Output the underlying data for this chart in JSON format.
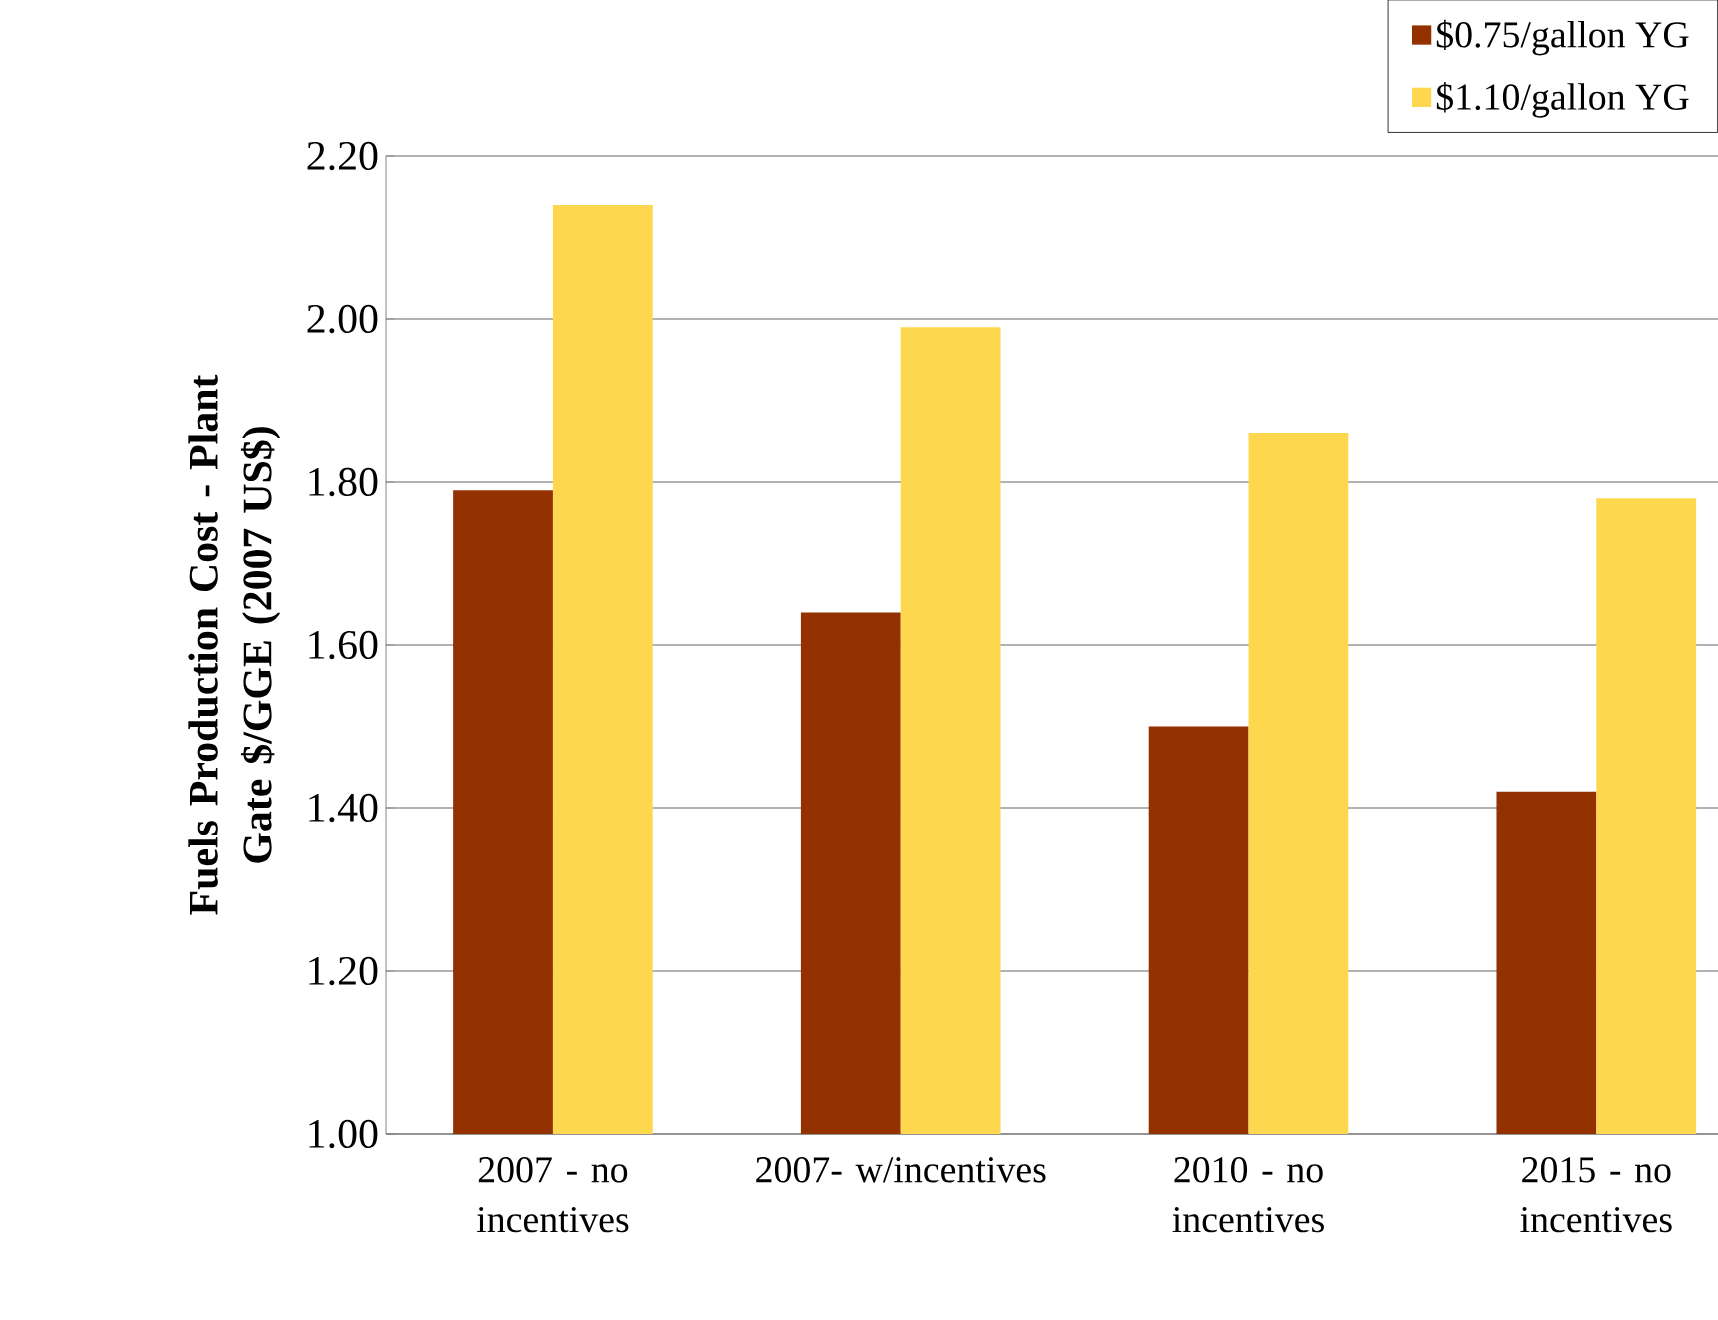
{
  "chart_data": {
    "type": "bar",
    "ylabel": "Fuels Production Cost - Plant Gate $/GGE (2007 US$)",
    "categories": [
      "2007 - no incentives",
      "2007- w/incentives",
      "2010 - no incentives",
      "2015 - no incentives"
    ],
    "series": [
      {
        "name": "$0.75/gallon YG",
        "color": "#943100",
        "values": [
          1.79,
          1.64,
          1.5,
          1.42
        ]
      },
      {
        "name": "$1.10/gallon YG",
        "color": "#fdd84f",
        "values": [
          2.14,
          1.99,
          1.86,
          1.78
        ]
      }
    ],
    "ylim": [
      1.0,
      2.2
    ],
    "yticks": [
      {
        "value": 1.0,
        "label": "1.00"
      },
      {
        "value": 1.2,
        "label": "1.20"
      },
      {
        "value": 1.4,
        "label": "1.40"
      },
      {
        "value": 1.6,
        "label": "1.60"
      },
      {
        "value": 1.8,
        "label": "1.80"
      },
      {
        "value": 2.0,
        "label": "2.00"
      },
      {
        "value": 2.2,
        "label": "2.20"
      }
    ],
    "grid": "y",
    "legend": "top right"
  }
}
